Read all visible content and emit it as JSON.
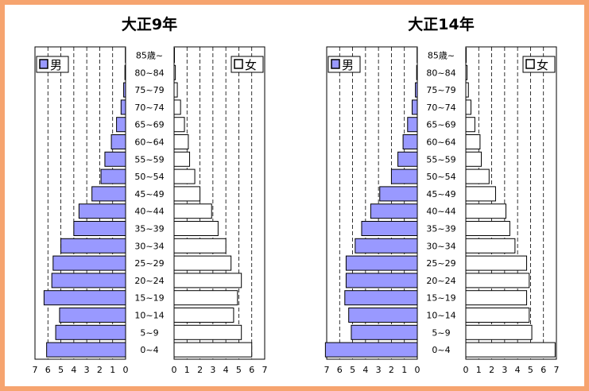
{
  "colors": {
    "male_fill": "#9999ff",
    "female_fill": "#ffffff",
    "border": "#f6a46f",
    "stroke": "#000000"
  },
  "chart_data": [
    {
      "type": "bar",
      "title": "大正9年",
      "age_groups": [
        "0~4",
        "5~9",
        "10~14",
        "15~19",
        "20~24",
        "25~29",
        "30~34",
        "35~39",
        "40~44",
        "45~49",
        "50~54",
        "55~59",
        "60~64",
        "65~69",
        "70~74",
        "75~79",
        "80~84",
        "85歳~"
      ],
      "male_legend": "男",
      "female_legend": "女",
      "x_ticks_male": [
        "7",
        "6",
        "5",
        "4",
        "3",
        "2",
        "1",
        "0"
      ],
      "x_ticks_female": [
        "0",
        "1",
        "2",
        "3",
        "4",
        "5",
        "6",
        "7"
      ],
      "xlim": [
        0,
        7
      ],
      "grid": "dashed vertical",
      "series": [
        {
          "name": "男",
          "values": [
            6.1,
            5.4,
            5.1,
            6.3,
            5.7,
            5.6,
            5.0,
            4.0,
            3.6,
            2.6,
            1.9,
            1.6,
            1.1,
            0.7,
            0.35,
            0.15,
            0.05,
            0.02
          ]
        },
        {
          "name": "女",
          "values": [
            6.0,
            5.2,
            4.6,
            4.9,
            5.2,
            4.4,
            4.0,
            3.4,
            2.9,
            2.0,
            1.6,
            1.2,
            1.1,
            0.8,
            0.5,
            0.25,
            0.1,
            0.03
          ]
        }
      ]
    },
    {
      "type": "bar",
      "title": "大正14年",
      "age_groups": [
        "0~4",
        "5~9",
        "10~14",
        "15~19",
        "20~24",
        "25~29",
        "30~34",
        "35~39",
        "40~44",
        "45~49",
        "50~54",
        "55~59",
        "60~64",
        "65~69",
        "70~74",
        "75~79",
        "80~84",
        "85歳~"
      ],
      "male_legend": "男",
      "female_legend": "女",
      "x_ticks_male": [
        "7",
        "6",
        "5",
        "4",
        "3",
        "2",
        "1",
        "0"
      ],
      "x_ticks_female": [
        "0",
        "1",
        "2",
        "3",
        "4",
        "5",
        "6",
        "7"
      ],
      "xlim": [
        0,
        7
      ],
      "grid": "dashed vertical",
      "series": [
        {
          "name": "男",
          "values": [
            7.1,
            5.1,
            5.3,
            5.6,
            5.5,
            5.5,
            4.8,
            4.3,
            3.6,
            2.9,
            2.0,
            1.5,
            1.1,
            0.75,
            0.4,
            0.15,
            0.05,
            0.02
          ]
        },
        {
          "name": "女",
          "values": [
            6.9,
            5.1,
            4.9,
            4.7,
            4.9,
            4.7,
            3.8,
            3.4,
            3.1,
            2.3,
            1.8,
            1.2,
            1.1,
            0.7,
            0.4,
            0.2,
            0.1,
            0.03
          ]
        }
      ]
    }
  ]
}
